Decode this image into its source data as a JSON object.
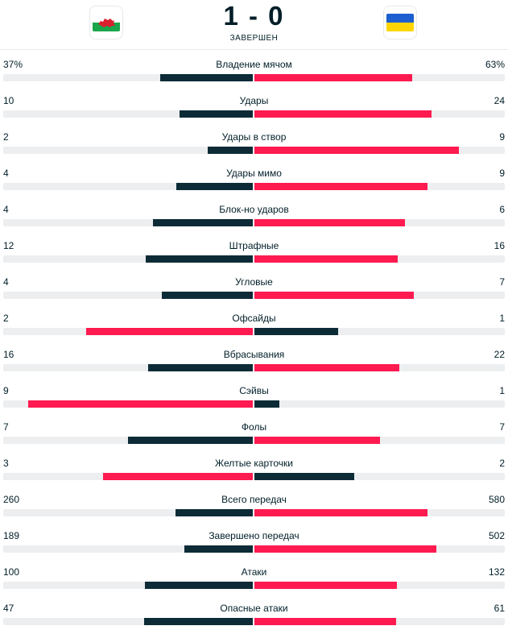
{
  "match": {
    "score": "1 - 0",
    "status": "ЗАВЕРШЕН",
    "home_flag_icon": "wales-flag-icon",
    "away_flag_icon": "ukraine-flag-icon"
  },
  "colors": {
    "winner_bar": "#ff1a50",
    "loser_bar": "#0c2b36",
    "track": "#eceef0"
  },
  "stats": [
    {
      "label": "Владение мячом",
      "home": "37%",
      "away": "63%",
      "home_share": 0.37,
      "away_share": 0.63
    },
    {
      "label": "Удары",
      "home": "10",
      "away": "24",
      "home_share": 0.294,
      "away_share": 0.706
    },
    {
      "label": "Удары в створ",
      "home": "2",
      "away": "9",
      "home_share": 0.182,
      "away_share": 0.818
    },
    {
      "label": "Удары мимо",
      "home": "4",
      "away": "9",
      "home_share": 0.308,
      "away_share": 0.692
    },
    {
      "label": "Блок-но ударов",
      "home": "4",
      "away": "6",
      "home_share": 0.4,
      "away_share": 0.6
    },
    {
      "label": "Штрафные",
      "home": "12",
      "away": "16",
      "home_share": 0.429,
      "away_share": 0.571
    },
    {
      "label": "Угловые",
      "home": "4",
      "away": "7",
      "home_share": 0.364,
      "away_share": 0.636
    },
    {
      "label": "Офсайды",
      "home": "2",
      "away": "1",
      "home_share": 0.667,
      "away_share": 0.333
    },
    {
      "label": "Вбрасывания",
      "home": "16",
      "away": "22",
      "home_share": 0.421,
      "away_share": 0.579
    },
    {
      "label": "Сэйвы",
      "home": "9",
      "away": "1",
      "home_share": 0.9,
      "away_share": 0.1
    },
    {
      "label": "Фолы",
      "home": "7",
      "away": "7",
      "home_share": 0.5,
      "away_share": 0.5
    },
    {
      "label": "Желтые карточки",
      "home": "3",
      "away": "2",
      "home_share": 0.6,
      "away_share": 0.4
    },
    {
      "label": "Всего передач",
      "home": "260",
      "away": "580",
      "home_share": 0.31,
      "away_share": 0.69
    },
    {
      "label": "Завершено передач",
      "home": "189",
      "away": "502",
      "home_share": 0.274,
      "away_share": 0.726
    },
    {
      "label": "Атаки",
      "home": "100",
      "away": "132",
      "home_share": 0.431,
      "away_share": 0.569
    },
    {
      "label": "Опасные атаки",
      "home": "47",
      "away": "61",
      "home_share": 0.435,
      "away_share": 0.565
    }
  ]
}
